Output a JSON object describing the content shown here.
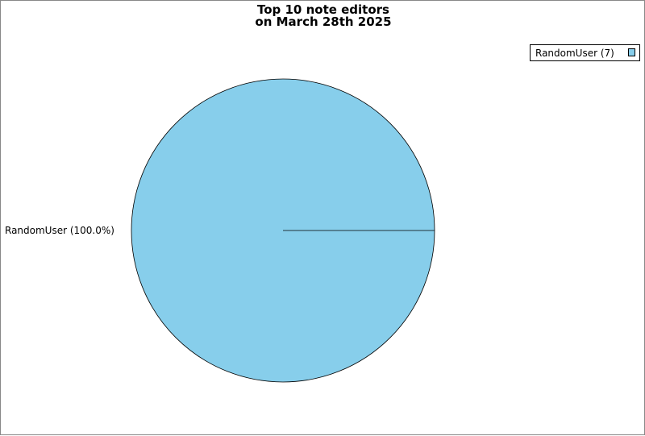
{
  "chart_data": {
    "type": "pie",
    "title": [
      "Top 10 note editors",
      "on March 28th 2025"
    ],
    "slices": [
      {
        "label": "RandomUser",
        "value": 7,
        "percent": 100.0,
        "color": "#87ceeb",
        "slice_label": "RandomUser (100.0%)",
        "legend_label": "RandomUser (7)"
      }
    ],
    "legend_placement": "top-right"
  }
}
